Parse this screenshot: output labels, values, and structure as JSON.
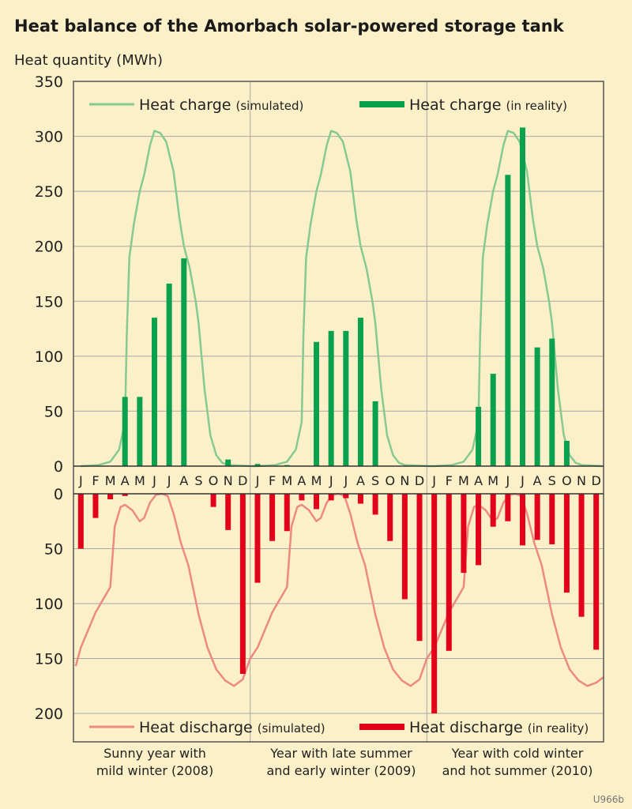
{
  "title": "Heat balance of the Amorbach solar-powered storage tank",
  "code": "U966b",
  "colors": {
    "background": "#fcf0c8",
    "charge_bar": "#0aa14e",
    "charge_line": "#86c991",
    "discharge_bar": "#e2001a",
    "discharge_line": "#ec8a82",
    "grid": "#a8a8a8"
  },
  "chart_data": {
    "type": "bar",
    "ylabel": "Heat quantity (MWh)",
    "months": [
      "J",
      "F",
      "M",
      "A",
      "M",
      "J",
      "J",
      "A",
      "S",
      "O",
      "N",
      "D",
      "J",
      "F",
      "M",
      "A",
      "M",
      "J",
      "J",
      "A",
      "S",
      "O",
      "N",
      "D",
      "J",
      "F",
      "M",
      "A",
      "M",
      "J",
      "J",
      "A",
      "S",
      "O",
      "N",
      "D"
    ],
    "year_captions": [
      [
        "Sunny year with",
        "mild winter (2008)"
      ],
      [
        "Year with late summer",
        "and early winter (2009)"
      ],
      [
        "Year with cold winter",
        "and hot summer (2010)"
      ]
    ],
    "charge_panel": {
      "ylim": [
        0,
        350
      ],
      "yticks": [
        0,
        50,
        100,
        150,
        200,
        250,
        300,
        350
      ],
      "legend": {
        "simulated": {
          "label": "Heat charge",
          "qualifier": "(simulated)"
        },
        "reality": {
          "label": "Heat charge",
          "qualifier": "(in reality)"
        }
      },
      "reality_values": [
        0,
        0,
        0,
        63,
        63,
        135,
        166,
        189,
        0,
        0,
        6,
        0,
        2,
        0,
        1,
        0,
        113,
        123,
        123,
        135,
        59,
        0,
        0,
        0,
        0,
        0,
        0,
        54,
        84,
        265,
        308,
        108,
        116,
        23,
        0,
        0
      ],
      "simulated_curve": [
        [
          0,
          0
        ],
        [
          1.2,
          1
        ],
        [
          2,
          4
        ],
        [
          2.6,
          15
        ],
        [
          3,
          40
        ],
        [
          3.12,
          120
        ],
        [
          3.3,
          190
        ],
        [
          3.6,
          220
        ],
        [
          4,
          250
        ],
        [
          4.3,
          265
        ],
        [
          4.7,
          292
        ],
        [
          5,
          305
        ],
        [
          5.4,
          303
        ],
        [
          5.8,
          295
        ],
        [
          6.3,
          268
        ],
        [
          6.7,
          225
        ],
        [
          7,
          200
        ],
        [
          7.4,
          180
        ],
        [
          7.8,
          150
        ],
        [
          8,
          130
        ],
        [
          8.4,
          70
        ],
        [
          8.8,
          28
        ],
        [
          9.2,
          10
        ],
        [
          9.6,
          3
        ],
        [
          10,
          1
        ],
        [
          11.7,
          0
        ],
        [
          12,
          0
        ],
        [
          13.2,
          1
        ],
        [
          14,
          4
        ],
        [
          14.6,
          15
        ],
        [
          15,
          40
        ],
        [
          15.12,
          120
        ],
        [
          15.3,
          190
        ],
        [
          15.6,
          220
        ],
        [
          16,
          250
        ],
        [
          16.3,
          265
        ],
        [
          16.7,
          292
        ],
        [
          17,
          305
        ],
        [
          17.4,
          303
        ],
        [
          17.8,
          295
        ],
        [
          18.3,
          268
        ],
        [
          18.7,
          225
        ],
        [
          19,
          200
        ],
        [
          19.4,
          180
        ],
        [
          19.8,
          150
        ],
        [
          20,
          130
        ],
        [
          20.4,
          70
        ],
        [
          20.8,
          28
        ],
        [
          21.2,
          10
        ],
        [
          21.6,
          3
        ],
        [
          22,
          1
        ],
        [
          23.7,
          0
        ],
        [
          24,
          0
        ],
        [
          25.2,
          1
        ],
        [
          26,
          4
        ],
        [
          26.6,
          15
        ],
        [
          27,
          40
        ],
        [
          27.12,
          120
        ],
        [
          27.3,
          190
        ],
        [
          27.6,
          220
        ],
        [
          28,
          250
        ],
        [
          28.3,
          265
        ],
        [
          28.7,
          292
        ],
        [
          29,
          305
        ],
        [
          29.4,
          303
        ],
        [
          29.8,
          295
        ],
        [
          30.3,
          268
        ],
        [
          30.7,
          225
        ],
        [
          31,
          200
        ],
        [
          31.4,
          180
        ],
        [
          31.8,
          150
        ],
        [
          32,
          130
        ],
        [
          32.4,
          70
        ],
        [
          32.8,
          28
        ],
        [
          33.2,
          10
        ],
        [
          33.6,
          3
        ],
        [
          34,
          1
        ],
        [
          35.4,
          0
        ]
      ]
    },
    "discharge_panel": {
      "ylim": [
        0,
        225
      ],
      "yticks": [
        0,
        50,
        100,
        150,
        200
      ],
      "legend": {
        "simulated": {
          "label": "Heat discharge",
          "qualifier": "(simulated)"
        },
        "reality": {
          "label": "Heat discharge",
          "qualifier": "(in reality)"
        }
      },
      "reality_values": [
        50,
        22,
        5,
        2,
        0,
        0,
        0,
        0,
        0,
        12,
        33,
        164,
        81,
        43,
        34,
        6,
        14,
        6,
        4,
        9,
        19,
        43,
        96,
        134,
        200,
        143,
        72,
        65,
        30,
        25,
        47,
        42,
        46,
        90,
        112,
        142
      ],
      "simulated_curve": [
        [
          -0.35,
          157
        ],
        [
          0,
          140
        ],
        [
          1,
          108
        ],
        [
          2,
          85
        ],
        [
          2.3,
          30
        ],
        [
          2.7,
          12
        ],
        [
          3,
          10
        ],
        [
          3.5,
          15
        ],
        [
          4,
          25
        ],
        [
          4.3,
          22
        ],
        [
          4.7,
          8
        ],
        [
          5.1,
          1
        ],
        [
          5.5,
          0
        ],
        [
          5.9,
          2
        ],
        [
          6.3,
          18
        ],
        [
          6.8,
          45
        ],
        [
          7.3,
          65
        ],
        [
          8,
          110
        ],
        [
          8.6,
          140
        ],
        [
          9.2,
          160
        ],
        [
          9.8,
          170
        ],
        [
          10.4,
          175
        ],
        [
          11,
          169
        ],
        [
          11.5,
          150
        ],
        [
          12,
          140
        ],
        [
          13,
          108
        ],
        [
          14,
          85
        ],
        [
          14.3,
          30
        ],
        [
          14.7,
          12
        ],
        [
          15,
          10
        ],
        [
          15.5,
          15
        ],
        [
          16,
          25
        ],
        [
          16.3,
          22
        ],
        [
          16.7,
          8
        ],
        [
          17.1,
          1
        ],
        [
          17.5,
          0
        ],
        [
          17.9,
          2
        ],
        [
          18.3,
          18
        ],
        [
          18.8,
          45
        ],
        [
          19.3,
          65
        ],
        [
          20,
          110
        ],
        [
          20.6,
          140
        ],
        [
          21.2,
          160
        ],
        [
          21.8,
          170
        ],
        [
          22.4,
          175
        ],
        [
          23,
          169
        ],
        [
          23.5,
          150
        ],
        [
          24,
          140
        ],
        [
          25,
          108
        ],
        [
          26,
          85
        ],
        [
          26.3,
          30
        ],
        [
          26.7,
          12
        ],
        [
          27,
          10
        ],
        [
          27.5,
          15
        ],
        [
          28,
          25
        ],
        [
          28.3,
          22
        ],
        [
          28.7,
          8
        ],
        [
          29.1,
          1
        ],
        [
          29.5,
          0
        ],
        [
          29.9,
          2
        ],
        [
          30.3,
          18
        ],
        [
          30.8,
          45
        ],
        [
          31.3,
          65
        ],
        [
          32,
          110
        ],
        [
          32.6,
          140
        ],
        [
          33.2,
          160
        ],
        [
          33.8,
          170
        ],
        [
          34.4,
          175
        ],
        [
          35,
          172
        ],
        [
          35.5,
          167
        ]
      ]
    }
  }
}
